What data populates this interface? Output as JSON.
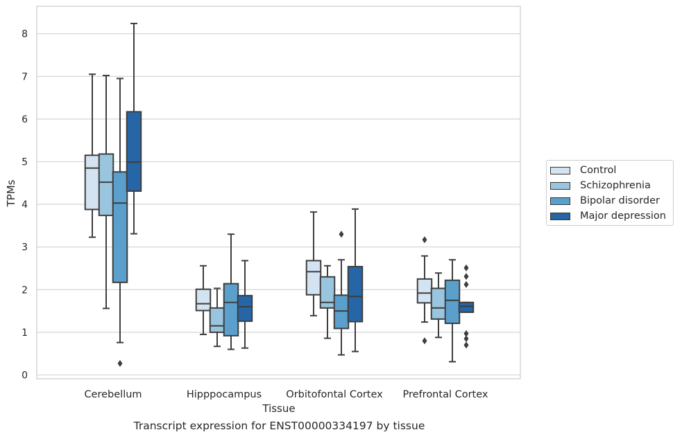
{
  "caption": "Transcript expression for ENST00000334197 by tissue",
  "chart_data": {
    "type": "boxplot",
    "xlabel": "Tissue",
    "ylabel": "TPMs",
    "ylim": [
      -0.1,
      8.65
    ],
    "yticks": [
      0,
      1,
      2,
      3,
      4,
      5,
      6,
      7,
      8
    ],
    "categories": [
      "Cerebellum",
      "Hipppocampus",
      "Orbitofontal Cortex",
      "Prefrontal Cortex"
    ],
    "legend_position": "right",
    "grid": "horizontal",
    "series": [
      {
        "name": "Control",
        "color": "#d4e3f1",
        "boxes": [
          {
            "whisker_low": 3.23,
            "q1": 3.88,
            "median": 4.85,
            "q3": 5.15,
            "whisker_high": 7.05,
            "outliers": []
          },
          {
            "whisker_low": 0.95,
            "q1": 1.51,
            "median": 1.67,
            "q3": 2.01,
            "whisker_high": 2.56,
            "outliers": []
          },
          {
            "whisker_low": 1.39,
            "q1": 1.88,
            "median": 2.42,
            "q3": 2.68,
            "whisker_high": 3.82,
            "outliers": []
          },
          {
            "whisker_low": 1.24,
            "q1": 1.69,
            "median": 1.92,
            "q3": 2.25,
            "whisker_high": 2.79,
            "outliers": [
              3.17,
              0.8
            ]
          }
        ]
      },
      {
        "name": "Schizophrenia",
        "color": "#9ac5de",
        "boxes": [
          {
            "whisker_low": 1.56,
            "q1": 3.74,
            "median": 4.52,
            "q3": 5.18,
            "whisker_high": 7.02,
            "outliers": []
          },
          {
            "whisker_low": 0.67,
            "q1": 1.0,
            "median": 1.15,
            "q3": 1.57,
            "whisker_high": 2.03,
            "outliers": []
          },
          {
            "whisker_low": 0.86,
            "q1": 1.57,
            "median": 1.7,
            "q3": 2.3,
            "whisker_high": 2.56,
            "outliers": []
          },
          {
            "whisker_low": 0.88,
            "q1": 1.31,
            "median": 1.57,
            "q3": 2.03,
            "whisker_high": 2.39,
            "outliers": []
          }
        ]
      },
      {
        "name": "Bipolar disorder",
        "color": "#5b9fcc",
        "boxes": [
          {
            "whisker_low": 0.76,
            "q1": 2.17,
            "median": 4.03,
            "q3": 4.76,
            "whisker_high": 6.95,
            "outliers": [
              0.27
            ]
          },
          {
            "whisker_low": 0.6,
            "q1": 0.92,
            "median": 1.7,
            "q3": 2.14,
            "whisker_high": 3.3,
            "outliers": []
          },
          {
            "whisker_low": 0.47,
            "q1": 1.09,
            "median": 1.5,
            "q3": 1.87,
            "whisker_high": 2.7,
            "outliers": [
              3.3
            ]
          },
          {
            "whisker_low": 0.31,
            "q1": 1.21,
            "median": 1.75,
            "q3": 2.22,
            "whisker_high": 2.7,
            "outliers": []
          }
        ]
      },
      {
        "name": "Major depression",
        "color": "#2666a7",
        "boxes": [
          {
            "whisker_low": 3.31,
            "q1": 4.31,
            "median": 4.99,
            "q3": 6.17,
            "whisker_high": 8.24,
            "outliers": []
          },
          {
            "whisker_low": 0.63,
            "q1": 1.26,
            "median": 1.6,
            "q3": 1.86,
            "whisker_high": 2.68,
            "outliers": []
          },
          {
            "whisker_low": 0.55,
            "q1": 1.25,
            "median": 1.84,
            "q3": 2.54,
            "whisker_high": 3.89,
            "outliers": []
          },
          {
            "whisker_low": 1.47,
            "q1": 1.47,
            "median": 1.61,
            "q3": 1.7,
            "whisker_high": 1.7,
            "outliers": [
              2.51,
              2.31,
              2.12,
              0.97,
              0.85,
              0.7
            ]
          }
        ]
      }
    ]
  }
}
